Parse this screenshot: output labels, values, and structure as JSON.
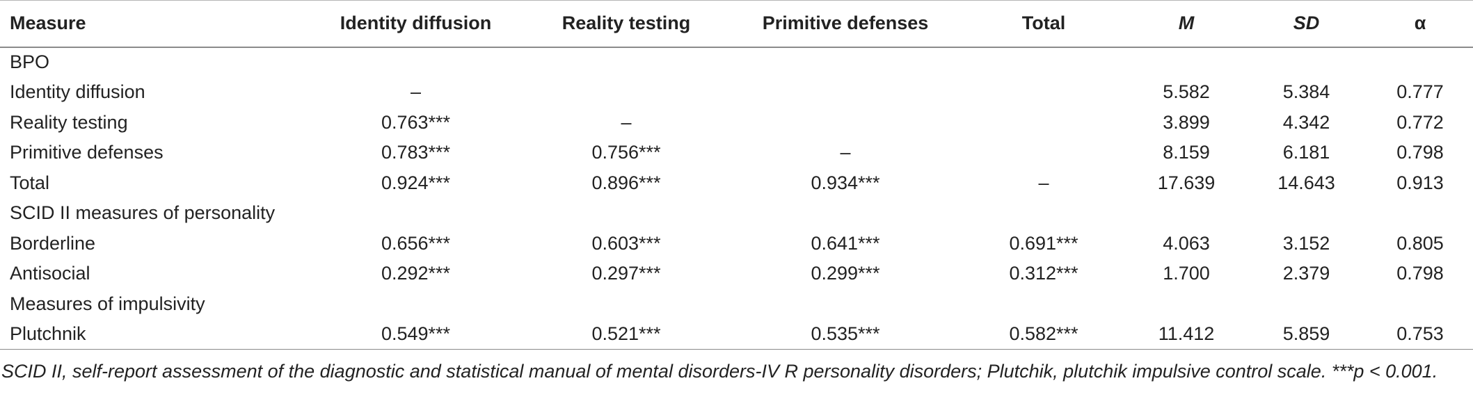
{
  "table": {
    "headers": [
      "Measure",
      "Identity diffusion",
      "Reality testing",
      "Primitive defenses",
      "Total",
      "M",
      "SD",
      "α"
    ],
    "rows": [
      [
        "BPO",
        "",
        "",
        "",
        "",
        "",
        "",
        ""
      ],
      [
        "Identity diffusion",
        "–",
        "",
        "",
        "",
        "5.582",
        "5.384",
        "0.777"
      ],
      [
        "Reality testing",
        "0.763***",
        "–",
        "",
        "",
        "3.899",
        "4.342",
        "0.772"
      ],
      [
        "Primitive defenses",
        "0.783***",
        "0.756***",
        "–",
        "",
        "8.159",
        "6.181",
        "0.798"
      ],
      [
        "Total",
        "0.924***",
        "0.896***",
        "0.934***",
        "–",
        "17.639",
        "14.643",
        "0.913"
      ],
      [
        "SCID II measures of personality",
        "",
        "",
        "",
        "",
        "",
        "",
        ""
      ],
      [
        "Borderline",
        "0.656***",
        "0.603***",
        "0.641***",
        "0.691***",
        "4.063",
        "3.152",
        "0.805"
      ],
      [
        "Antisocial",
        "0.292***",
        "0.297***",
        "0.299***",
        "0.312***",
        "1.700",
        "2.379",
        "0.798"
      ],
      [
        "Measures of impulsivity",
        "",
        "",
        "",
        "",
        "",
        "",
        ""
      ],
      [
        "Plutchnik",
        "0.549***",
        "0.521***",
        "0.535***",
        "0.582***",
        "11.412",
        "5.859",
        "0.753"
      ]
    ]
  },
  "footnote": "SCID II, self-report assessment of the diagnostic and statistical manual of mental disorders-IV R personality disorders; Plutchik, plutchik impulsive control scale. ***p < 0.001."
}
